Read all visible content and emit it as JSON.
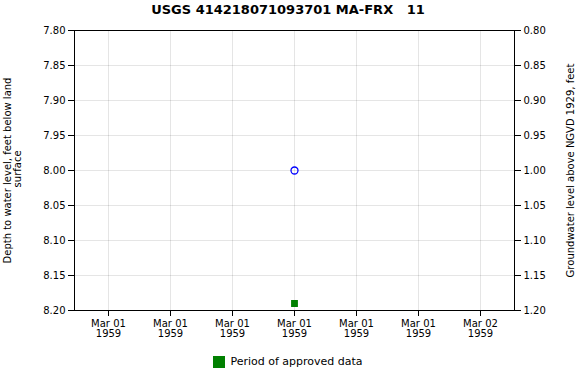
{
  "chart_data": {
    "type": "scatter",
    "title": "USGS 414218071093701 MA-FRX   11",
    "ylabel": "Depth to water level, feet below land\n surface",
    "y2label": "Groundwater level above NGVD 1929, feet",
    "categories": [
      "Mar 01\n1959",
      "Mar 01\n1959",
      "Mar 01\n1959",
      "Mar 01\n1959",
      "Mar 01\n1959",
      "Mar 01\n1959",
      "Mar 02\n1959"
    ],
    "series": [
      {
        "color": "blue",
        "marker": "circle",
        "values": [
          null,
          null,
          null,
          8.0,
          null,
          null,
          null
        ]
      },
      {
        "name": "Period of approved data",
        "color": "#008000",
        "marker": "square",
        "values": [
          null,
          null,
          null,
          8.19,
          null,
          null,
          null
        ]
      }
    ],
    "ylim": [
      8.2,
      7.8
    ],
    "yticks": [
      {
        "value": 7.8,
        "label": "7.80"
      },
      7.85,
      {
        "value": 7.9,
        "label": "7.90"
      },
      7.95,
      {
        "value": 8.0,
        "label": "8.00"
      },
      8.05,
      {
        "value": 8.1,
        "label": "8.10"
      },
      8.15,
      {
        "value": 8.2,
        "label": "8.20"
      }
    ],
    "y2lim": [
      1.2,
      0.8
    ],
    "y2ticks": [
      {
        "value": 0.8,
        "label": "0.80"
      },
      0.85,
      {
        "value": 0.9,
        "label": "0.90"
      },
      0.95,
      {
        "value": 1.0,
        "label": "1.00"
      },
      1.05,
      {
        "value": 1.1,
        "label": "1.10"
      },
      1.15,
      {
        "value": 1.2,
        "label": "1.20"
      }
    ],
    "grid": true,
    "legend": "bottom"
  }
}
